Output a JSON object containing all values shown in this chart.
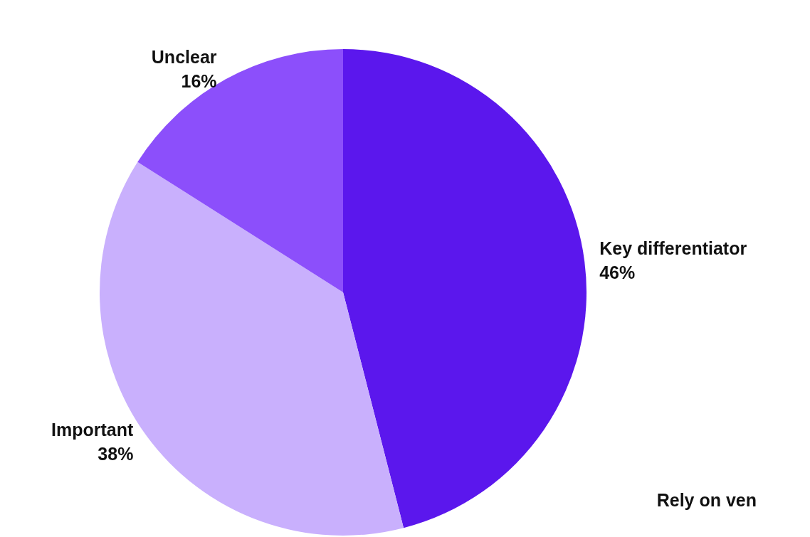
{
  "chart_data": {
    "type": "pie",
    "categories": [
      "Key differentiator",
      "Important",
      "Unclear"
    ],
    "values": [
      46,
      38,
      16
    ],
    "value_labels": [
      "46%",
      "38%",
      "16%"
    ],
    "colors": [
      "#5b17ed",
      "#c9b0fd",
      "#8c4ffb"
    ],
    "legend": false,
    "annotations": [
      "Rely on ven"
    ]
  }
}
